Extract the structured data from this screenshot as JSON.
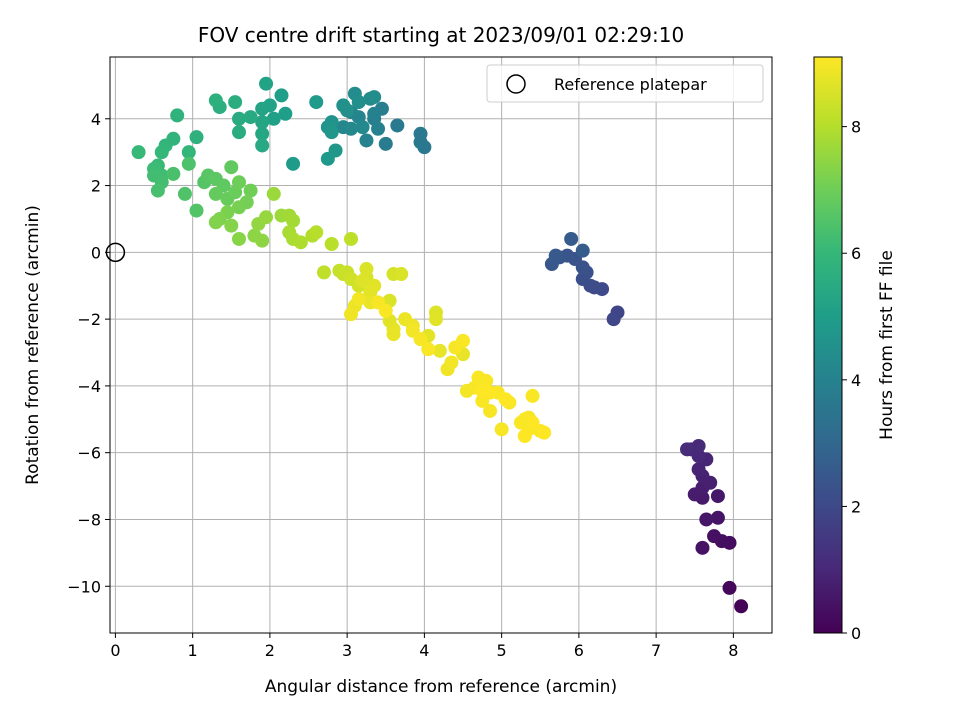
{
  "chart_data": {
    "type": "scatter",
    "title": "FOV centre drift starting at 2023/09/01 02:29:10",
    "xlabel": "Angular distance from reference (arcmin)",
    "ylabel": "Rotation from reference (arcmin)",
    "xlim": [
      -0.07,
      8.5
    ],
    "ylim": [
      -11.4,
      5.85
    ],
    "xticks": [
      "0",
      "1",
      "2",
      "3",
      "4",
      "5",
      "6",
      "7",
      "8"
    ],
    "yticks": [
      "−10",
      "−8",
      "−6",
      "−4",
      "−2",
      "0",
      "2",
      "4"
    ],
    "grid": true,
    "legend": {
      "position": "top-right",
      "entries": [
        "Reference platepar"
      ]
    },
    "reference_point": {
      "x": 0,
      "y": 0
    },
    "colorbar": {
      "label": "Hours from first FF file",
      "range": [
        0,
        9.1
      ],
      "ticks": [
        "0",
        "2",
        "4",
        "6",
        "8"
      ],
      "colormap": "viridis",
      "stops": [
        "#440154",
        "#482878",
        "#3e4989",
        "#31688e",
        "#26828e",
        "#1f9e89",
        "#35b779",
        "#6ece58",
        "#b5de2b",
        "#fde725"
      ]
    },
    "series": [
      {
        "values": [
          [
            8.1,
            -10.6,
            0.05
          ],
          [
            7.95,
            -10.05,
            0.15
          ],
          [
            7.95,
            -8.7,
            0.3
          ],
          [
            7.85,
            -8.65,
            0.35
          ],
          [
            7.75,
            -8.5,
            0.4
          ],
          [
            7.6,
            -8.85,
            0.45
          ],
          [
            7.8,
            -7.95,
            0.5
          ],
          [
            7.65,
            -8.0,
            0.55
          ],
          [
            7.8,
            -7.3,
            0.6
          ],
          [
            7.6,
            -7.35,
            0.65
          ],
          [
            7.5,
            -7.25,
            0.7
          ],
          [
            7.6,
            -7.05,
            0.75
          ],
          [
            7.7,
            -6.9,
            0.8
          ],
          [
            7.6,
            -6.7,
            0.85
          ],
          [
            7.55,
            -6.5,
            0.9
          ],
          [
            7.65,
            -6.2,
            0.95
          ],
          [
            7.55,
            -6.1,
            1.0
          ],
          [
            7.45,
            -5.9,
            1.05
          ],
          [
            7.55,
            -5.8,
            1.1
          ],
          [
            7.4,
            -5.9,
            1.15
          ],
          [
            6.5,
            -1.8,
            1.9
          ],
          [
            6.45,
            -2.0,
            1.95
          ],
          [
            6.3,
            -1.1,
            2.05
          ],
          [
            6.2,
            -1.05,
            2.1
          ],
          [
            6.15,
            -1.0,
            2.15
          ],
          [
            6.05,
            -0.8,
            2.2
          ],
          [
            6.1,
            -0.6,
            2.25
          ],
          [
            6.05,
            -0.45,
            2.3
          ],
          [
            5.95,
            -0.2,
            2.35
          ],
          [
            5.85,
            -0.1,
            2.4
          ],
          [
            5.75,
            -0.15,
            2.45
          ],
          [
            5.65,
            -0.35,
            2.5
          ],
          [
            5.7,
            -0.1,
            2.55
          ],
          [
            5.9,
            0.4,
            2.6
          ],
          [
            6.05,
            0.05,
            2.65
          ],
          [
            4.0,
            3.15,
            3.6
          ],
          [
            3.95,
            3.3,
            3.65
          ],
          [
            3.95,
            3.55,
            3.7
          ],
          [
            3.65,
            3.8,
            3.75
          ],
          [
            3.5,
            3.25,
            3.8
          ],
          [
            3.45,
            4.3,
            3.85
          ],
          [
            3.35,
            4.0,
            3.9
          ],
          [
            3.4,
            3.7,
            3.95
          ],
          [
            3.35,
            4.15,
            4.0
          ],
          [
            3.25,
            3.35,
            4.05
          ],
          [
            3.15,
            4.05,
            4.1
          ],
          [
            3.05,
            4.2,
            4.15
          ],
          [
            2.95,
            3.75,
            4.2
          ],
          [
            3.05,
            3.7,
            4.25
          ],
          [
            3.2,
            3.75,
            4.3
          ],
          [
            3.3,
            4.6,
            4.35
          ],
          [
            3.1,
            4.75,
            4.4
          ],
          [
            3.35,
            4.65,
            4.45
          ],
          [
            3.15,
            4.5,
            4.5
          ],
          [
            3.0,
            4.25,
            4.55
          ],
          [
            2.95,
            4.4,
            4.6
          ],
          [
            2.8,
            3.9,
            4.65
          ],
          [
            2.75,
            3.75,
            4.7
          ],
          [
            2.8,
            3.6,
            4.75
          ],
          [
            2.85,
            3.05,
            4.8
          ],
          [
            2.75,
            2.8,
            4.85
          ],
          [
            2.6,
            4.5,
            4.9
          ],
          [
            2.3,
            2.65,
            5.0
          ],
          [
            2.2,
            4.15,
            5.05
          ],
          [
            2.15,
            4.7,
            5.1
          ],
          [
            2.05,
            4.0,
            5.15
          ],
          [
            2.0,
            4.4,
            5.2
          ],
          [
            1.95,
            5.05,
            5.25
          ],
          [
            1.9,
            4.3,
            5.3
          ],
          [
            1.9,
            3.9,
            5.35
          ],
          [
            1.9,
            3.55,
            5.4
          ],
          [
            1.9,
            3.2,
            5.45
          ],
          [
            1.75,
            4.05,
            5.5
          ],
          [
            1.6,
            4.0,
            5.55
          ],
          [
            1.6,
            3.6,
            5.6
          ],
          [
            1.55,
            4.5,
            5.65
          ],
          [
            1.35,
            4.35,
            5.7
          ],
          [
            1.3,
            4.55,
            5.75
          ],
          [
            1.05,
            3.45,
            5.8
          ],
          [
            0.8,
            4.1,
            5.85
          ],
          [
            0.75,
            3.4,
            5.9
          ],
          [
            0.65,
            3.2,
            5.95
          ],
          [
            0.95,
            3.0,
            6.0
          ],
          [
            0.6,
            3.0,
            6.05
          ],
          [
            0.3,
            3.0,
            6.1
          ],
          [
            0.55,
            2.6,
            6.15
          ],
          [
            0.5,
            2.5,
            6.2
          ],
          [
            0.6,
            2.3,
            6.25
          ],
          [
            0.5,
            2.3,
            6.3
          ],
          [
            0.6,
            2.1,
            6.35
          ],
          [
            0.55,
            1.85,
            6.4
          ],
          [
            0.75,
            2.35,
            6.45
          ],
          [
            0.95,
            2.65,
            6.5
          ],
          [
            0.9,
            1.75,
            6.55
          ],
          [
            1.05,
            1.25,
            6.6
          ],
          [
            1.15,
            2.1,
            6.65
          ],
          [
            1.2,
            2.3,
            6.7
          ],
          [
            1.3,
            2.2,
            6.75
          ],
          [
            1.4,
            2.0,
            6.8
          ],
          [
            1.5,
            2.55,
            6.85
          ],
          [
            1.3,
            1.75,
            6.9
          ],
          [
            1.45,
            1.6,
            6.95
          ],
          [
            1.55,
            1.8,
            7.0
          ],
          [
            1.6,
            2.1,
            7.05
          ],
          [
            1.75,
            1.85,
            7.1
          ],
          [
            1.7,
            1.5,
            7.15
          ],
          [
            1.6,
            1.35,
            7.2
          ],
          [
            1.45,
            1.2,
            7.25
          ],
          [
            1.35,
            1.0,
            7.3
          ],
          [
            1.3,
            0.9,
            7.35
          ],
          [
            1.5,
            0.8,
            7.4
          ],
          [
            1.6,
            0.4,
            7.45
          ],
          [
            1.8,
            0.5,
            7.5
          ],
          [
            1.9,
            0.35,
            7.55
          ],
          [
            1.85,
            0.85,
            7.6
          ],
          [
            1.95,
            1.05,
            7.65
          ],
          [
            2.05,
            1.75,
            7.7
          ],
          [
            2.15,
            1.1,
            7.75
          ],
          [
            2.25,
            1.1,
            7.8
          ],
          [
            2.3,
            0.95,
            7.85
          ],
          [
            2.25,
            0.6,
            7.9
          ],
          [
            2.3,
            0.4,
            7.95
          ],
          [
            2.4,
            0.3,
            8.0
          ],
          [
            2.55,
            0.5,
            8.05
          ],
          [
            2.6,
            0.6,
            8.1
          ],
          [
            2.8,
            0.25,
            8.15
          ],
          [
            3.05,
            0.4,
            8.2
          ],
          [
            2.7,
            -0.6,
            8.25
          ],
          [
            2.9,
            -0.55,
            8.3
          ],
          [
            2.95,
            -0.65,
            8.35
          ],
          [
            3.0,
            -0.6,
            8.4
          ],
          [
            3.05,
            -0.8,
            8.45
          ],
          [
            3.15,
            -1.0,
            8.5
          ],
          [
            3.25,
            -0.75,
            8.55
          ],
          [
            3.25,
            -0.5,
            8.6
          ],
          [
            3.2,
            -0.85,
            8.65
          ],
          [
            3.35,
            -1.0,
            8.7
          ],
          [
            3.3,
            -1.2,
            8.75
          ],
          [
            3.3,
            -1.5,
            8.8
          ],
          [
            3.1,
            -1.6,
            8.85
          ],
          [
            3.05,
            -1.85,
            8.9
          ],
          [
            3.15,
            -1.4,
            8.95
          ],
          [
            3.4,
            -1.5,
            9.0
          ],
          [
            3.5,
            -1.75,
            9.05
          ],
          [
            3.55,
            -1.45,
            8.6
          ],
          [
            3.6,
            -0.65,
            8.55
          ],
          [
            3.7,
            -0.65,
            8.6
          ],
          [
            3.55,
            -2.05,
            8.7
          ],
          [
            3.6,
            -2.3,
            8.75
          ],
          [
            3.6,
            -2.45,
            8.8
          ],
          [
            3.75,
            -2.0,
            8.85
          ],
          [
            3.85,
            -2.2,
            8.9
          ],
          [
            3.85,
            -2.35,
            8.95
          ],
          [
            3.95,
            -2.6,
            9.0
          ],
          [
            4.05,
            -2.9,
            9.05
          ],
          [
            4.15,
            -2.0,
            8.7
          ],
          [
            4.15,
            -1.8,
            8.65
          ],
          [
            4.05,
            -2.5,
            8.75
          ],
          [
            4.2,
            -2.95,
            8.8
          ],
          [
            4.3,
            -3.5,
            8.9
          ],
          [
            4.35,
            -3.3,
            8.95
          ],
          [
            4.4,
            -2.85,
            9.0
          ],
          [
            4.5,
            -2.65,
            9.05
          ],
          [
            4.5,
            -3.05,
            8.8
          ],
          [
            4.55,
            -4.15,
            8.95
          ],
          [
            4.65,
            -4.05,
            9.0
          ],
          [
            4.7,
            -3.75,
            9.05
          ],
          [
            4.75,
            -4.15,
            9.1
          ],
          [
            4.75,
            -4.45,
            9.05
          ],
          [
            4.85,
            -4.75,
            9.0
          ],
          [
            4.8,
            -3.85,
            9.05
          ],
          [
            4.85,
            -4.2,
            9.1
          ],
          [
            4.95,
            -4.2,
            9.05
          ],
          [
            5.05,
            -4.4,
            9.1
          ],
          [
            5.1,
            -4.5,
            9.05
          ],
          [
            5.0,
            -5.3,
            9.0
          ],
          [
            5.3,
            -5.0,
            9.05
          ],
          [
            5.35,
            -5.3,
            9.05
          ],
          [
            5.3,
            -5.5,
            9.1
          ],
          [
            5.4,
            -4.3,
            9.05
          ],
          [
            5.4,
            -5.1,
            9.1
          ],
          [
            5.5,
            -5.35,
            9.05
          ],
          [
            5.55,
            -5.4,
            9.1
          ],
          [
            5.35,
            -4.95,
            9.0
          ],
          [
            5.25,
            -5.1,
            9.05
          ]
        ]
      }
    ]
  }
}
